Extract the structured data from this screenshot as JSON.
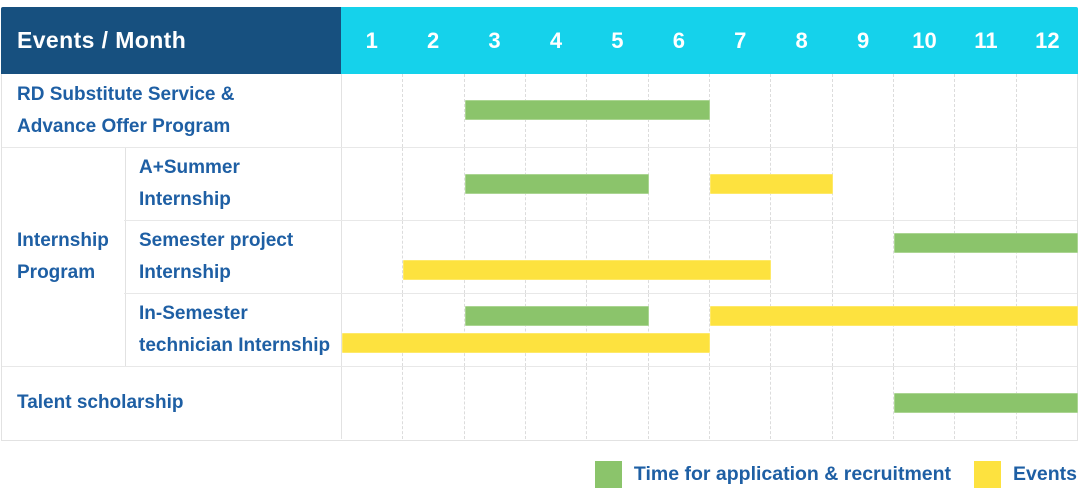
{
  "header": {
    "label": "Events / Month",
    "months": [
      "1",
      "2",
      "3",
      "4",
      "5",
      "6",
      "7",
      "8",
      "9",
      "10",
      "11",
      "12"
    ]
  },
  "group": {
    "label": "Internship\nProgram"
  },
  "rows": [
    {
      "id": "rd-substitute-service-advance-offer-program",
      "kind": "single",
      "label": "RD Substitute Service &\nAdvance Offer Program",
      "bars": [
        {
          "color": "green",
          "start": 3,
          "end": 6,
          "line": "center"
        }
      ]
    },
    {
      "id": "a-plus-summer-internship",
      "kind": "sub",
      "label": "A+Summer\nInternship",
      "bars": [
        {
          "color": "green",
          "start": 3,
          "end": 5,
          "line": "center"
        },
        {
          "color": "yellow",
          "start": 7,
          "end": 8,
          "line": "center"
        }
      ]
    },
    {
      "id": "semester-project-internship",
      "kind": "sub",
      "label": "Semester project\nInternship",
      "bars": [
        {
          "color": "green",
          "start": 10,
          "end": 12,
          "line": "top"
        },
        {
          "color": "yellow",
          "start": 2,
          "end": 7,
          "line": "bottom"
        }
      ]
    },
    {
      "id": "in-semester-technician-internship",
      "kind": "sub",
      "label": "In-Semester\ntechnician Internship",
      "bars": [
        {
          "color": "green",
          "start": 3,
          "end": 5,
          "line": "top"
        },
        {
          "color": "yellow",
          "start": 7,
          "end": 12,
          "line": "top"
        },
        {
          "color": "yellow",
          "start": 1,
          "end": 6,
          "line": "bottom"
        }
      ]
    },
    {
      "id": "talent-scholarship",
      "kind": "single",
      "label": "Talent scholarship",
      "bars": [
        {
          "color": "green",
          "start": 10,
          "end": 12,
          "line": "center"
        }
      ]
    }
  ],
  "legend": {
    "items": [
      {
        "key": "application",
        "label": "Time for application & recruitment",
        "color": "#8BC46B"
      },
      {
        "key": "events",
        "label": "Events",
        "color": "#FDE23F"
      }
    ]
  },
  "colors": {
    "header_bg": "#17507F",
    "months_bg": "#15D2EB",
    "label_text": "#1E5FA4",
    "application_bar": "#8BC46B",
    "events_bar": "#FDE23F",
    "grid": "#E2E2E2",
    "header_text": "#FFFFFF"
  },
  "chart_data": {
    "type": "table",
    "subtype": "gantt",
    "title": "Events / Month",
    "x_axis": {
      "label": "Month",
      "ticks": [
        1,
        2,
        3,
        4,
        5,
        6,
        7,
        8,
        9,
        10,
        11,
        12
      ]
    },
    "legend_entries": [
      "Time for application & recruitment",
      "Events"
    ],
    "legend_position": "bottom-right",
    "grid": true,
    "tasks": [
      {
        "name": "RD Substitute Service & Advance Offer Program",
        "group": null,
        "application_recruitment_months": [
          [
            3,
            6
          ]
        ],
        "events_months": []
      },
      {
        "name": "A+Summer Internship",
        "group": "Internship Program",
        "application_recruitment_months": [
          [
            3,
            5
          ]
        ],
        "events_months": [
          [
            7,
            8
          ]
        ]
      },
      {
        "name": "Semester project Internship",
        "group": "Internship Program",
        "application_recruitment_months": [
          [
            10,
            12
          ]
        ],
        "events_months": [
          [
            2,
            7
          ]
        ]
      },
      {
        "name": "In-Semester technician Internship",
        "group": "Internship Program",
        "application_recruitment_months": [
          [
            3,
            5
          ]
        ],
        "events_months": [
          [
            1,
            6
          ],
          [
            7,
            12
          ]
        ]
      },
      {
        "name": "Talent scholarship",
        "group": null,
        "application_recruitment_months": [
          [
            10,
            12
          ]
        ],
        "events_months": []
      }
    ]
  }
}
